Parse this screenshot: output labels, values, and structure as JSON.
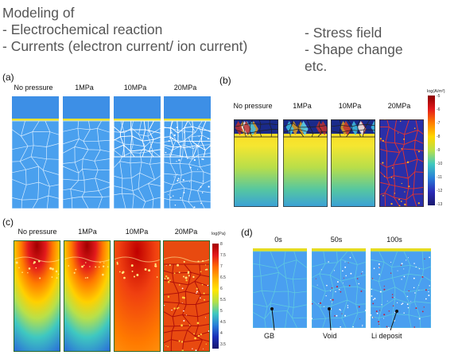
{
  "header": {
    "left": [
      "Modeling of",
      "- Electrochemical reaction",
      "- Currents (electron current/ ion current)"
    ],
    "right": [
      "- Stress field",
      "- Shape change",
      "etc."
    ]
  },
  "panels": {
    "a": {
      "label": "(a)",
      "columns": [
        "No pressure",
        "1MPa",
        "10MPa",
        "20MPa"
      ]
    },
    "b": {
      "label": "(b)",
      "columns": [
        "No pressure",
        "1MPa",
        "10MPa",
        "20MPa"
      ],
      "colorbar": {
        "title": "log(A/m²)",
        "ticks": [
          "-5",
          "-6",
          "-7",
          "-8",
          "-9",
          "-10",
          "-11",
          "-12",
          "-13"
        ]
      }
    },
    "c": {
      "label": "(c)",
      "columns": [
        "No pressure",
        "1MPa",
        "10MPa",
        "20MPa"
      ],
      "colorbar": {
        "title": "log(Pa)",
        "ticks": [
          "8",
          "7.5",
          "7",
          "6.5",
          "6",
          "5.5",
          "5",
          "4.5",
          "4",
          "3.5"
        ]
      }
    },
    "d": {
      "label": "(d)",
      "columns": [
        "0s",
        "50s",
        "100s"
      ],
      "annotations": [
        "GB",
        "Void",
        "Li deposit"
      ]
    }
  }
}
